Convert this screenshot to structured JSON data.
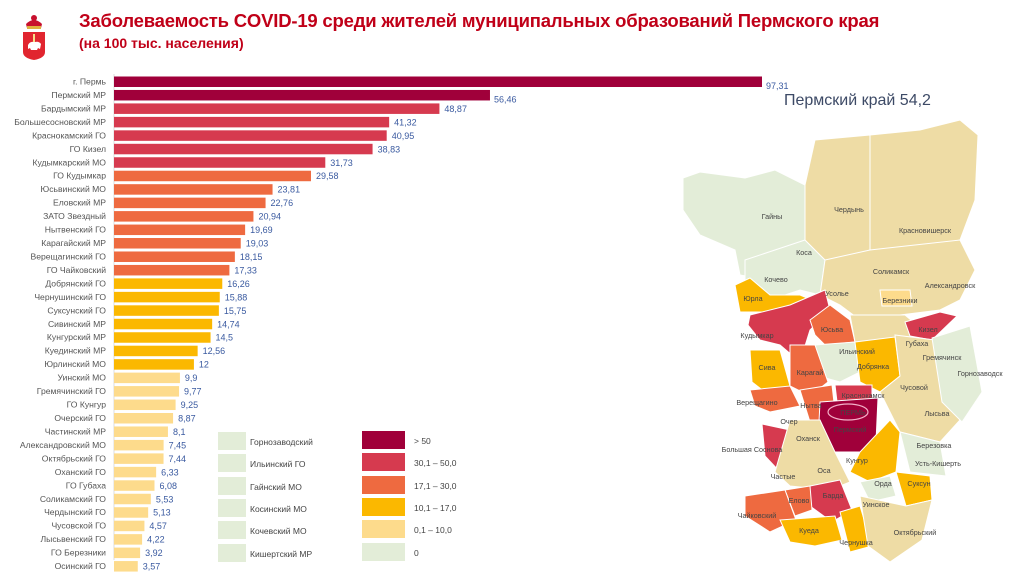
{
  "header": {
    "title": "Заболеваемость COVID-19 среди жителей муниципальных образований Пермского края",
    "subtitle": "(на 100 тыс. населения)",
    "logo": "coat-of-arms-perm-krai-icon"
  },
  "region_total": "Пермский край 54,2",
  "colors": {
    "gt50": "#a0003a",
    "r30_50": "#d63a4f",
    "r17_30": "#ee6a40",
    "r10_17": "#fbb800",
    "r0_10": "#fddb8c",
    "zero": "#e3edd8",
    "value_text": "#3a5aa0",
    "title": "#c00018"
  },
  "chart_data": {
    "type": "bar",
    "orientation": "horizontal",
    "title": "Заболеваемость COVID-19 среди жителей муниципальных образований Пермского края",
    "subtitle": "(на 100 тыс. населения)",
    "categories": [
      "г. Пермь",
      "Пермский МР",
      "Бардымский МР",
      "Большесосновский МР",
      "Краснокамский ГО",
      "ГО Кизел",
      "Кудымкарский МО",
      "ГО Кудымкар",
      "Юсьвинский МО",
      "Еловский МР",
      "ЗАТО Звездный",
      "Нытвенский ГО",
      "Карагайский МР",
      "Верещагинский ГО",
      "ГО Чайковский",
      "Добрянский ГО",
      "Чернушинский ГО",
      "Суксунский ГО",
      "Сивинский МР",
      "Кунгурский МР",
      "Куединский МР",
      "Юрлинский МО",
      "Уинский МО",
      "Гремячинский ГО",
      "ГО Кунгур",
      "Очерский ГО",
      "Частинский МР",
      "Александровский МО",
      "Октябрьский ГО",
      "Оханский ГО",
      "ГО Губаха",
      "Соликамский ГО",
      "Чердынский ГО",
      "Чусовской ГО",
      "Лысьвенский ГО",
      "ГО Березники",
      "Осинский ГО"
    ],
    "value_labels": [
      "97,31",
      "56,46",
      "48,87",
      "41,32",
      "40,95",
      "38,83",
      "31,73",
      "29,58",
      "23,81",
      "22,76",
      "20,94",
      "19,69",
      "19,03",
      "18,15",
      "17,33",
      "16,26",
      "15,88",
      "15,75",
      "14,74",
      "14,5",
      "12,56",
      "12",
      "9,9",
      "9,77",
      "9,25",
      "8,87",
      "8,1",
      "7,45",
      "7,44",
      "6,33",
      "6,08",
      "5,53",
      "5,13",
      "4,57",
      "4,22",
      "3,92",
      "3,57"
    ],
    "values": [
      97.31,
      56.46,
      48.87,
      41.32,
      40.95,
      38.83,
      31.73,
      29.58,
      23.81,
      22.76,
      20.94,
      19.69,
      19.03,
      18.15,
      17.33,
      16.26,
      15.88,
      15.75,
      14.74,
      14.5,
      12.56,
      12,
      9.9,
      9.77,
      9.25,
      8.87,
      8.1,
      7.45,
      7.44,
      6.33,
      6.08,
      5.53,
      5.13,
      4.57,
      4.22,
      3.92,
      3.57
    ],
    "xlim": [
      0,
      100
    ],
    "grid": false,
    "legend": {
      "placement": "bottom",
      "zero_items": [
        "Горнозаводский",
        "Ильинский ГО",
        "Гайнский МО",
        "Косинский МО",
        "Кочевский МО",
        "Кишертский МР"
      ],
      "scale": [
        {
          "label": "> 50",
          "color": "#a0003a"
        },
        {
          "label": "30,1 – 50,0",
          "color": "#d63a4f"
        },
        {
          "label": "17,1 – 30,0",
          "color": "#ee6a40"
        },
        {
          "label": "10,1 – 17,0",
          "color": "#fbb800"
        },
        {
          "label": "0,1 – 10,0",
          "color": "#fddb8c"
        },
        {
          "label": "0",
          "color": "#e3edd8"
        }
      ]
    }
  },
  "map": {
    "labels": [
      "Гайны",
      "Чердынь",
      "Красновишерск",
      "Коса",
      "Соликамск",
      "Александровск",
      "Кочево",
      "Юрла",
      "Усолье",
      "Березники",
      "Юсьва",
      "Кизел",
      "Кудымкар",
      "Губаха",
      "Ильинский",
      "Гремячинск",
      "Горнозаводск",
      "Добрянка",
      "Сива",
      "Карагай",
      "Чусовой",
      "Верещагино",
      "Нытва",
      "Краснокамск",
      "ПЕРМЬ",
      "Лысьва",
      "Очер",
      "Пермский",
      "Оханск",
      "Большая Соснова",
      "Березовка",
      "Кунгур",
      "Усть-Кишерть",
      "Оса",
      "Частые",
      "Орда",
      "Суксун",
      "Барда",
      "Елово",
      "Уинское",
      "Чайковский",
      "Октябрьский",
      "Куеда",
      "Чернушка"
    ]
  }
}
